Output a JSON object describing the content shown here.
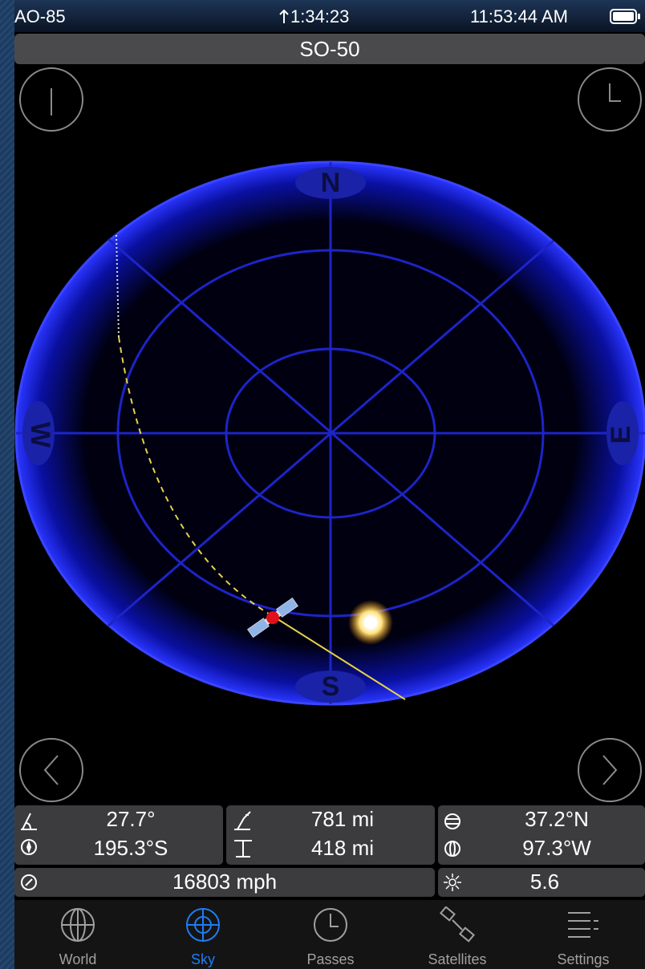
{
  "status_bar": {
    "left": "AO-85",
    "center": "1:34:23",
    "right": "11:53:44 AM"
  },
  "header": {
    "title": "SO-50"
  },
  "sky_plot": {
    "compass": {
      "north": "N",
      "east": "E",
      "south": "S",
      "west": "W"
    }
  },
  "info_panel": {
    "elevation": "27.7°",
    "azimuth": "195.3°S",
    "range": "781 mi",
    "altitude": "418 mi",
    "latitude": "37.2°N",
    "longitude": "97.3°W",
    "speed": "16803 mph",
    "magnitude": "5.6"
  },
  "tab_bar": {
    "tabs": [
      {
        "label": "World",
        "selected": false
      },
      {
        "label": "Sky",
        "selected": true
      },
      {
        "label": "Passes",
        "selected": false
      },
      {
        "label": "Satellites",
        "selected": false
      },
      {
        "label": "Settings",
        "selected": false
      }
    ]
  }
}
